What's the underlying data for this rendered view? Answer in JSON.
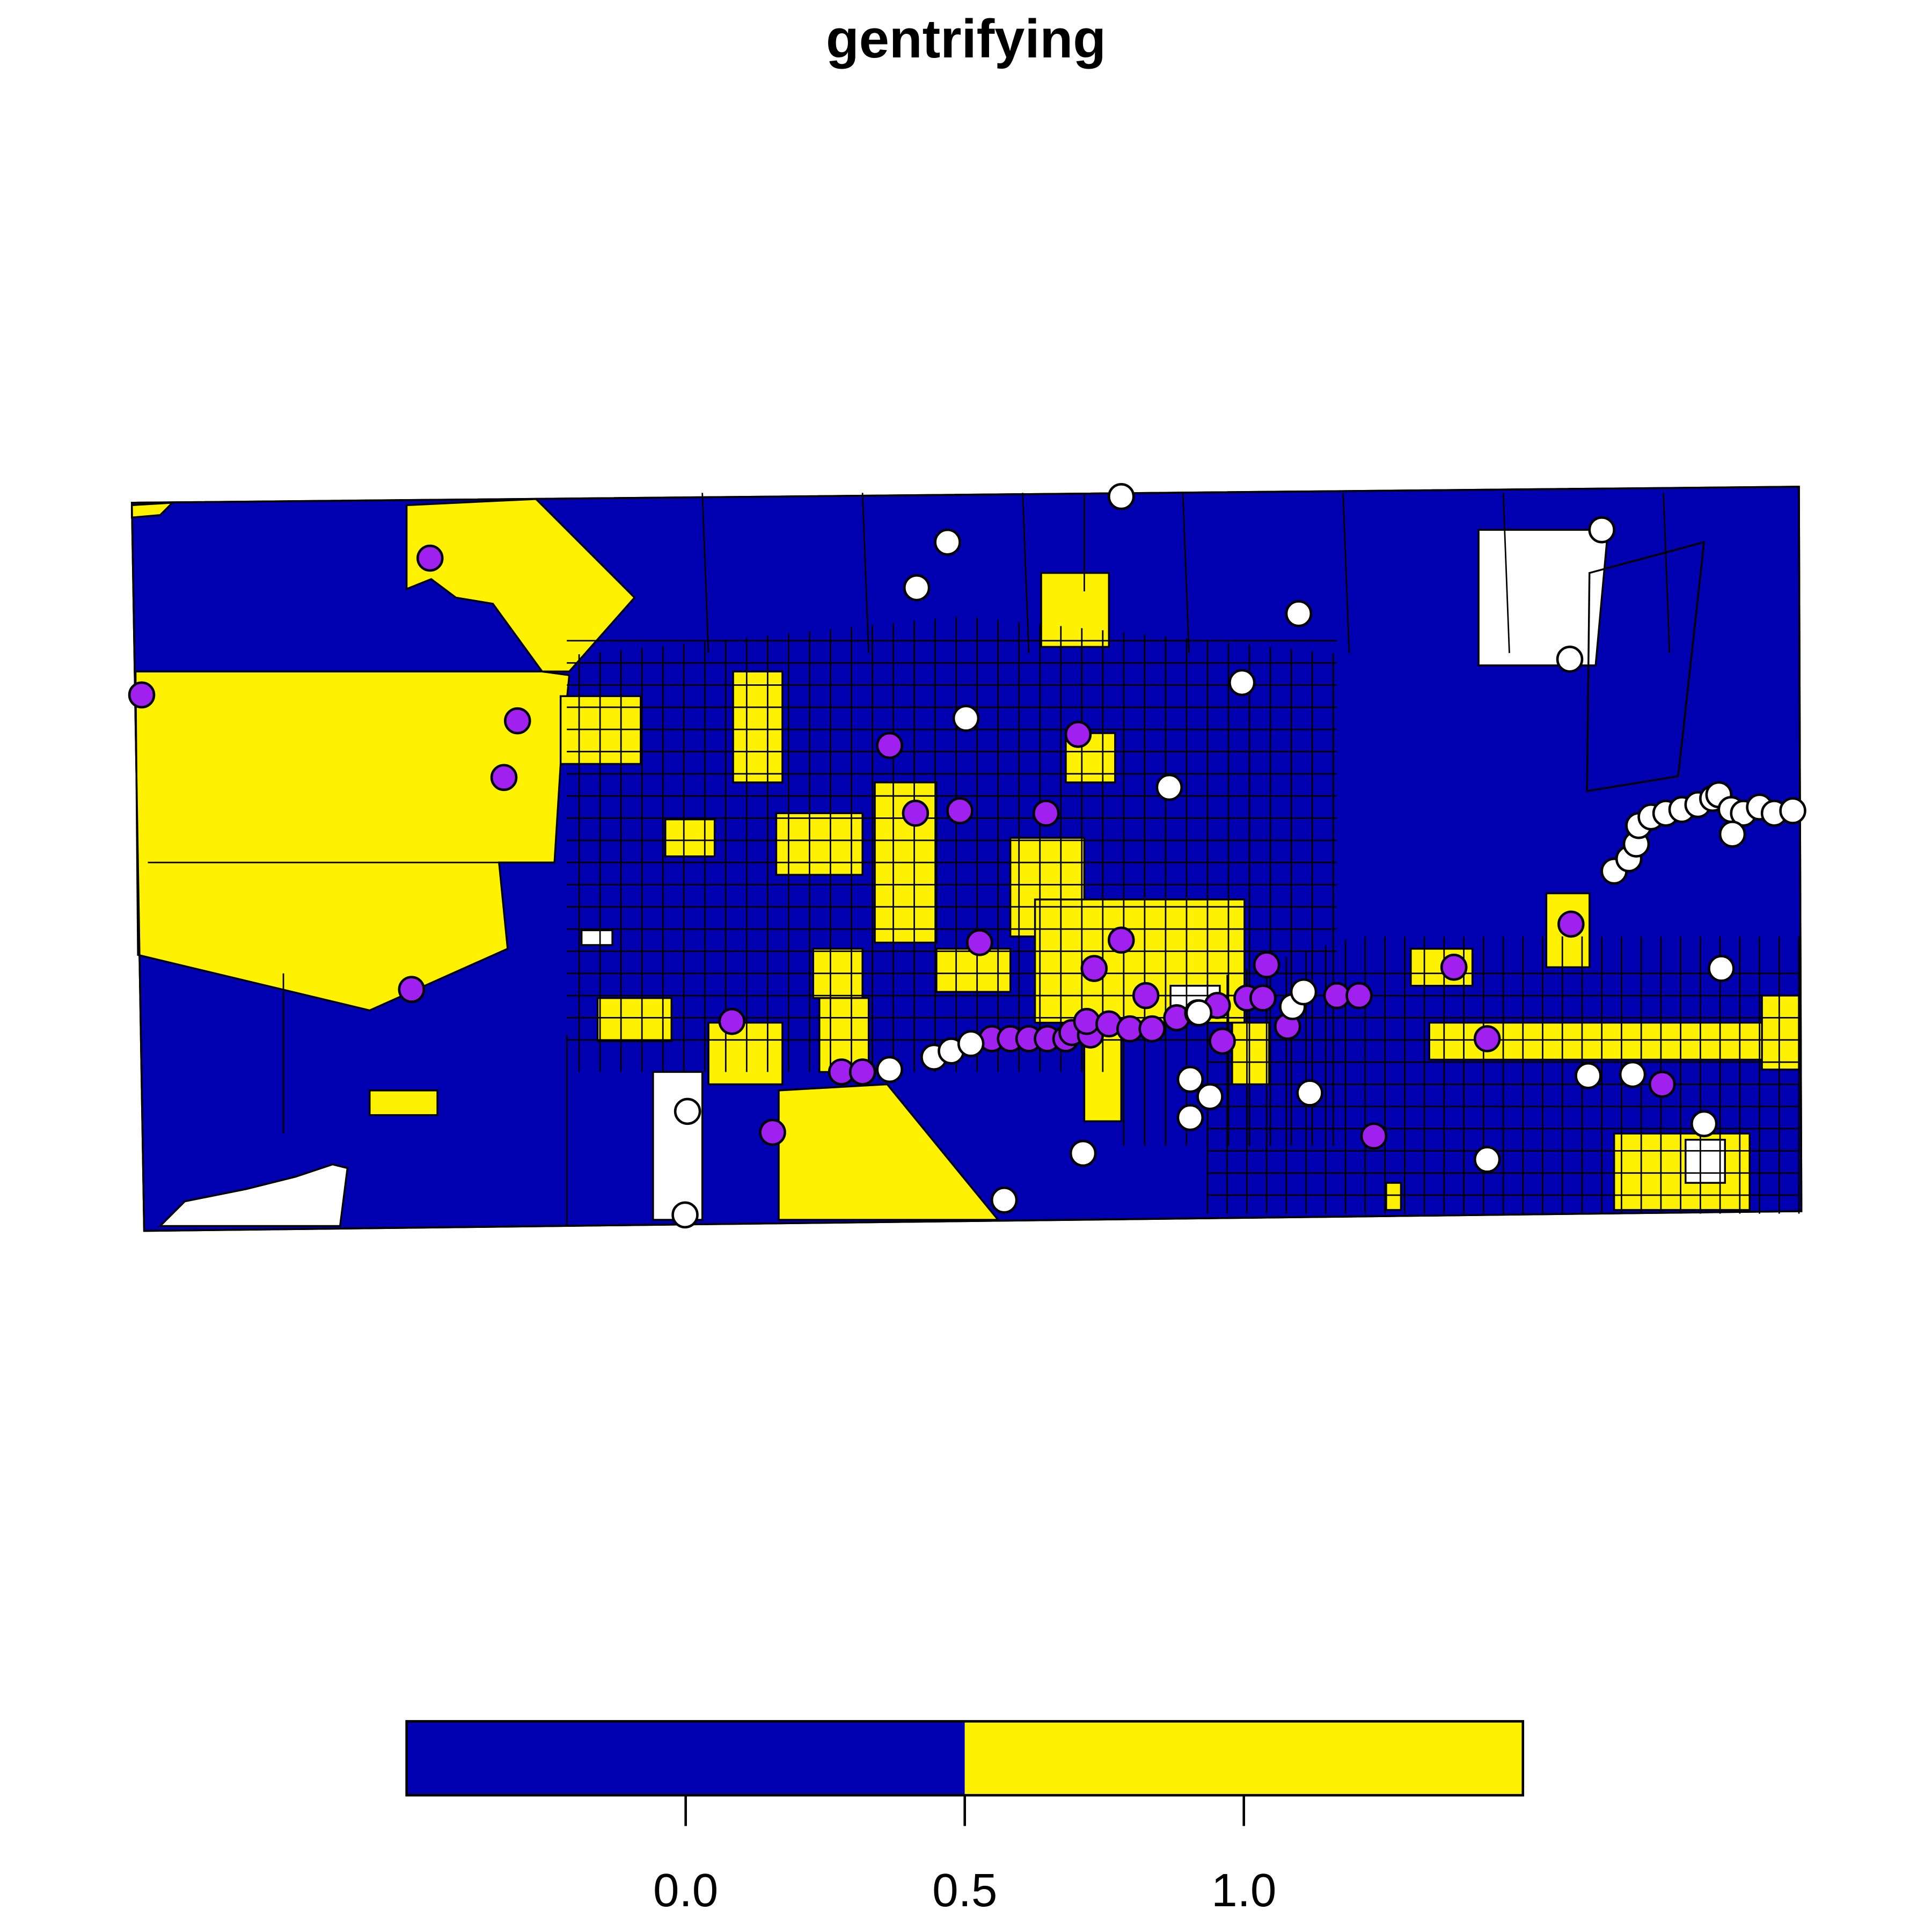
{
  "title": "gentrifying",
  "legend": {
    "lim": [
      -0.5,
      1.5
    ],
    "breaks": [
      -0.5,
      0.5,
      1.5
    ],
    "colors": [
      "#0000b0",
      "#fff200"
    ],
    "ticks": [
      {
        "value": 0,
        "label": "0.0"
      },
      {
        "value": 0.5,
        "label": "0.5"
      },
      {
        "value": 1,
        "label": "1.0"
      }
    ]
  },
  "points": {
    "colors": [
      "#a020f0",
      "#ffffff"
    ]
  }
}
